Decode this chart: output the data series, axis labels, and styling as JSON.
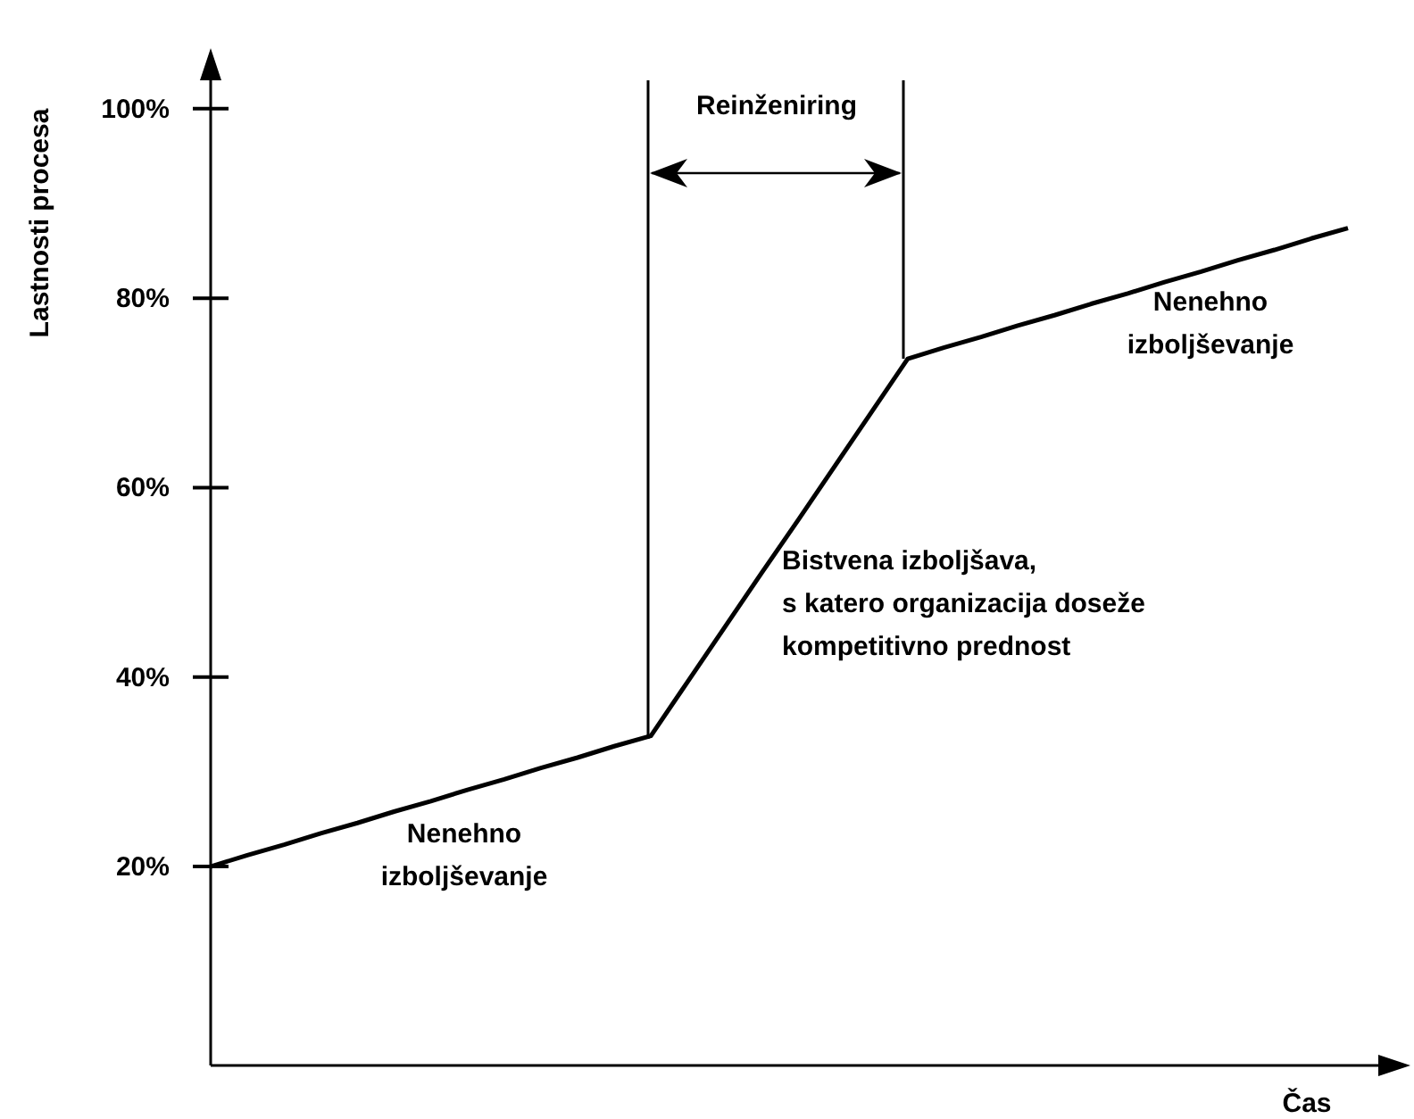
{
  "chart_data": {
    "type": "line",
    "ylabel": "Lastnosti procesa",
    "xlabel": "Čas",
    "categories": [
      null,
      null,
      null,
      null,
      null,
      null,
      null,
      null,
      null,
      null,
      null,
      null,
      null,
      null,
      null,
      null,
      null,
      null,
      null,
      null,
      null,
      null,
      null,
      null,
      null,
      null,
      null,
      null,
      null,
      null,
      null,
      null
    ],
    "ylim": [
      -1,
      103
    ],
    "yticks": [
      {
        "value": 20,
        "label": "20%"
      },
      {
        "value": 40,
        "label": "40%"
      },
      {
        "value": 60,
        "label": "60%"
      },
      {
        "value": 80,
        "label": "80%"
      },
      {
        "value": 100,
        "label": "100%"
      }
    ],
    "tick_labels": "y",
    "grid": false,
    "marker": "none",
    "line_style": "solid",
    "series": [
      {
        "color": "#000000",
        "values": [
          20,
          21.2,
          22.3,
          23.5,
          24.6,
          25.8,
          26.9,
          28.1,
          29.2,
          30.4,
          31.5,
          32.7,
          33.8,
          39.5,
          45.2,
          50.9,
          56.5,
          62.2,
          67.9,
          73.6,
          74.8,
          75.9,
          77.1,
          78.2,
          79.4,
          80.5,
          81.7,
          82.8,
          84.0,
          85.1,
          86.3,
          87.4
        ]
      }
    ],
    "annotations": [
      "Reinženiring",
      "Nenehno\nizboljševanje",
      "Nenehno\nizboljševanje",
      "Bistvena izboljšava,\ns katero organizacija doseže\nkompetitivno prednost"
    ]
  }
}
